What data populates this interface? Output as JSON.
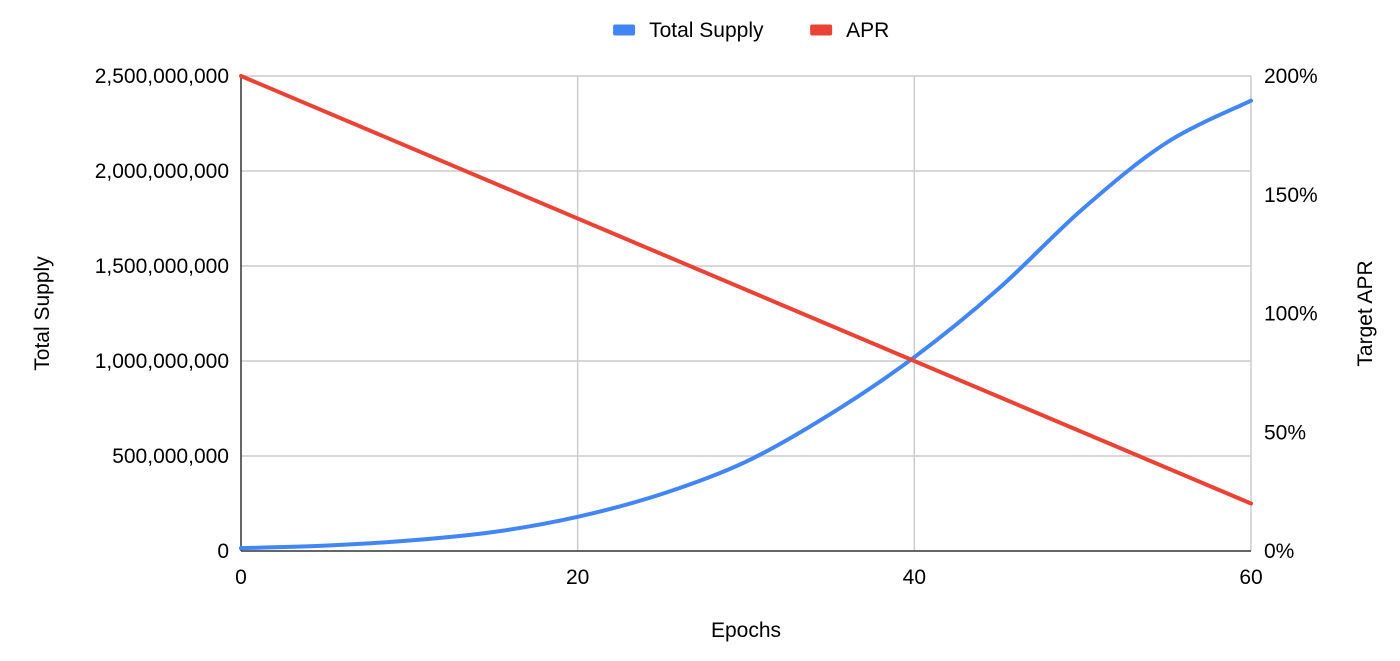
{
  "chart_data": {
    "type": "line",
    "title": "",
    "xlabel": "Epochs",
    "ylabel": "Total Supply",
    "y2label": "Target APR",
    "xlim": [
      0,
      60
    ],
    "ylim": [
      0,
      2500000000
    ],
    "y2lim": [
      0,
      2.0
    ],
    "grid": true,
    "legend_position": "top-center",
    "x_ticks": [
      "0",
      "20",
      "40",
      "60"
    ],
    "y_ticks": [
      "0",
      "500,000,000",
      "1,000,000,000",
      "1,500,000,000",
      "2,000,000,000",
      "2,500,000,000"
    ],
    "y2_ticks": [
      "0%",
      "50%",
      "100%",
      "150%",
      "200%"
    ],
    "series": [
      {
        "name": "Total Supply",
        "axis": "left",
        "color": "#4285f4",
        "x": [
          0,
          5,
          10,
          15,
          20,
          25,
          30,
          35,
          40,
          45,
          50,
          55,
          60
        ],
        "values": [
          15000000,
          28000000,
          55000000,
          100000000,
          180000000,
          300000000,
          470000000,
          720000000,
          1020000000,
          1380000000,
          1800000000,
          2150000000,
          2370000000
        ]
      },
      {
        "name": "APR",
        "axis": "right",
        "color": "#ea4335",
        "x": [
          0,
          60
        ],
        "values": [
          2.0,
          0.2
        ]
      }
    ]
  }
}
